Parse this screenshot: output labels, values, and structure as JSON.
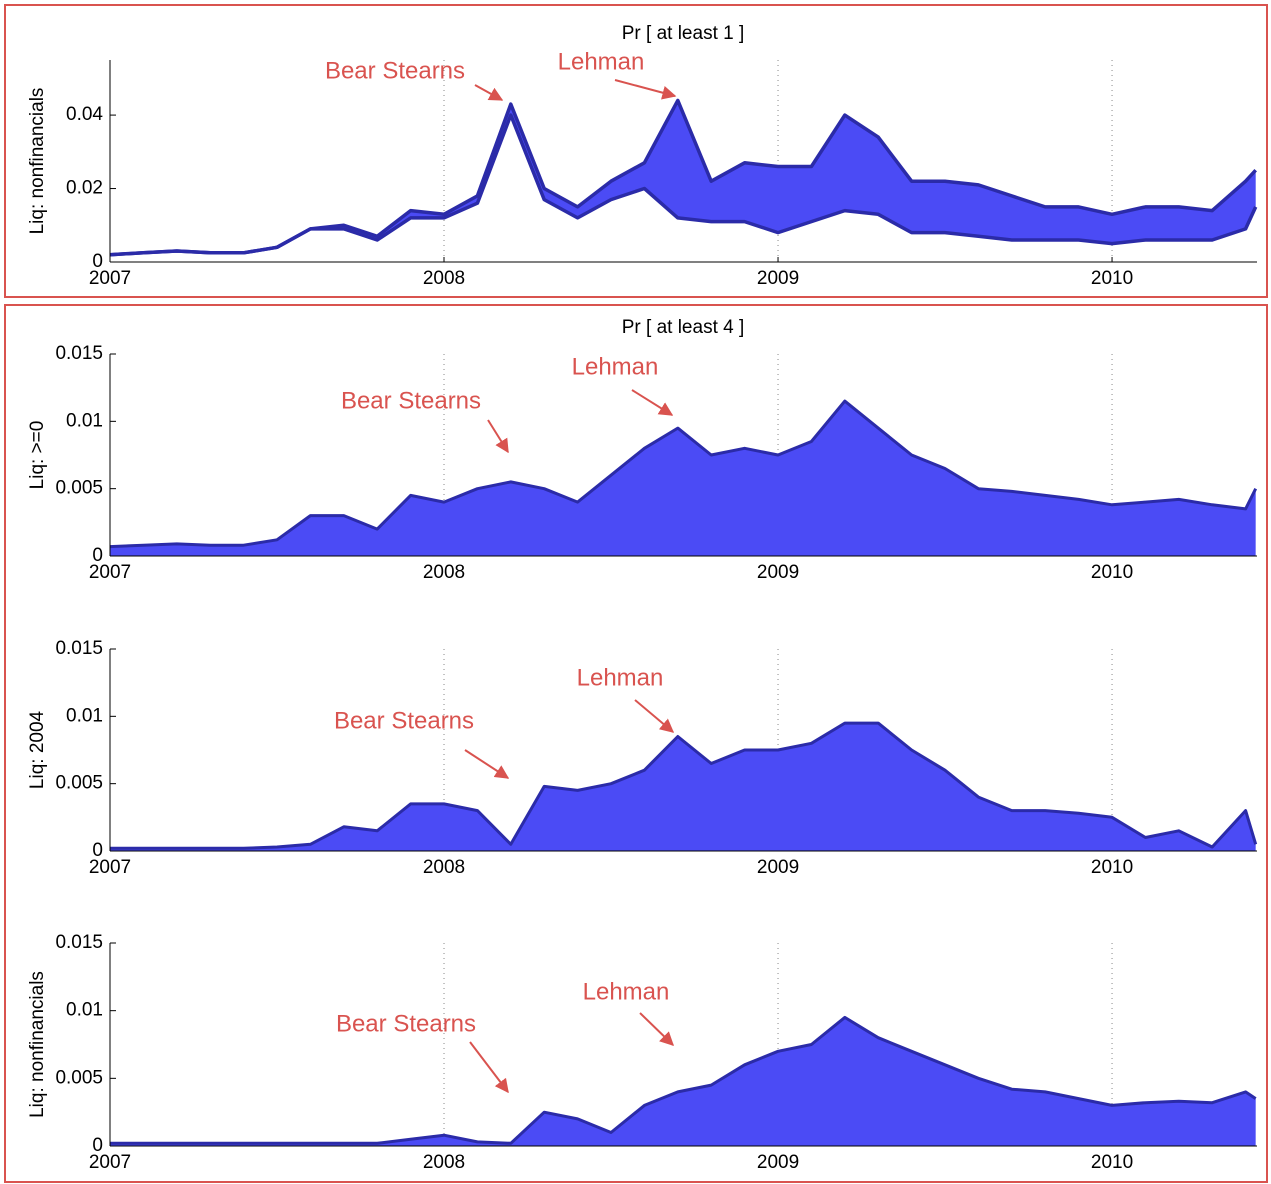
{
  "chart_data": [
    {
      "type": "band",
      "title": "Pr [ at least 1 ]",
      "y_label": "Liq: nonfinancials",
      "annotations": [
        "Bear Stearns",
        "Lehman"
      ],
      "x": [
        2007,
        2007.1,
        2007.2,
        2007.3,
        2007.4,
        2007.5,
        2007.6,
        2007.7,
        2007.8,
        2007.9,
        2008,
        2008.1,
        2008.2,
        2008.3,
        2008.4,
        2008.5,
        2008.6,
        2008.7,
        2008.8,
        2008.9,
        2009,
        2009.1,
        2009.2,
        2009.3,
        2009.4,
        2009.5,
        2009.6,
        2009.7,
        2009.8,
        2009.9,
        2010,
        2010.1,
        2010.2,
        2010.3,
        2010.4,
        2010.43
      ],
      "series": [
        {
          "color": "#4b4bf5",
          "values": [
            0.002,
            0.0025,
            0.003,
            0.0025,
            0.0025,
            0.004,
            0.009,
            0.01,
            0.007,
            0.014,
            0.013,
            0.018,
            0.043,
            0.02,
            0.015,
            0.022,
            0.027,
            0.044,
            0.022,
            0.027,
            0.026,
            0.026,
            0.04,
            0.034,
            0.022,
            0.022,
            0.021,
            0.018,
            0.015,
            0.015,
            0.013,
            0.015,
            0.015,
            0.014,
            0.022,
            0.025
          ]
        },
        {
          "color": "#4b4bf5",
          "values": [
            0.002,
            0.0025,
            0.003,
            0.0025,
            0.0025,
            0.004,
            0.009,
            0.009,
            0.006,
            0.012,
            0.012,
            0.016,
            0.04,
            0.017,
            0.012,
            0.017,
            0.02,
            0.012,
            0.011,
            0.011,
            0.008,
            0.011,
            0.014,
            0.013,
            0.008,
            0.008,
            0.007,
            0.006,
            0.006,
            0.006,
            0.005,
            0.006,
            0.006,
            0.006,
            0.009,
            0.015
          ]
        }
      ],
      "edge_color": "#2b2ba8",
      "xlim": [
        2007,
        2010.434
      ],
      "xticks": [
        2007,
        2008,
        2009,
        2010
      ],
      "ylim": [
        0,
        0.055
      ],
      "yticks": [
        0,
        0.02,
        0.04
      ],
      "xgrid": true
    },
    {
      "type": "area",
      "title": "Pr [ at least 4 ]",
      "y_label": "Liq: >=0",
      "annotations": [
        "Bear Stearns",
        "Lehman"
      ],
      "x": [
        2007,
        2007.1,
        2007.2,
        2007.3,
        2007.4,
        2007.5,
        2007.6,
        2007.7,
        2007.8,
        2007.9,
        2008,
        2008.1,
        2008.2,
        2008.3,
        2008.4,
        2008.5,
        2008.6,
        2008.7,
        2008.8,
        2008.9,
        2009,
        2009.1,
        2009.2,
        2009.3,
        2009.4,
        2009.5,
        2009.6,
        2009.7,
        2009.8,
        2009.9,
        2010,
        2010.1,
        2010.2,
        2010.3,
        2010.4,
        2010.43
      ],
      "values": [
        0.0007,
        0.0008,
        0.0009,
        0.0008,
        0.0008,
        0.0012,
        0.003,
        0.003,
        0.002,
        0.0045,
        0.004,
        0.005,
        0.0055,
        0.005,
        0.004,
        0.006,
        0.008,
        0.0095,
        0.0075,
        0.008,
        0.0075,
        0.0085,
        0.0115,
        0.0095,
        0.0075,
        0.0065,
        0.005,
        0.0048,
        0.0045,
        0.0042,
        0.0038,
        0.004,
        0.0042,
        0.0038,
        0.0035,
        0.005
      ],
      "color": "#4b4bf5",
      "edge_color": "#2b2ba8",
      "xlim": [
        2007,
        2010.434
      ],
      "xticks": [
        2007,
        2008,
        2009,
        2010
      ],
      "ylim": [
        0,
        0.015
      ],
      "yticks": [
        0,
        0.005,
        0.01,
        0.015
      ],
      "xgrid": true
    },
    {
      "type": "area",
      "y_label": "Liq: 2004",
      "annotations": [
        "Bear Stearns",
        "Lehman"
      ],
      "x": [
        2007,
        2007.1,
        2007.2,
        2007.3,
        2007.4,
        2007.5,
        2007.6,
        2007.7,
        2007.8,
        2007.9,
        2008,
        2008.1,
        2008.2,
        2008.3,
        2008.4,
        2008.5,
        2008.6,
        2008.7,
        2008.8,
        2008.9,
        2009,
        2009.1,
        2009.2,
        2009.3,
        2009.4,
        2009.5,
        2009.6,
        2009.7,
        2009.8,
        2009.9,
        2010,
        2010.1,
        2010.2,
        2010.3,
        2010.4,
        2010.43
      ],
      "values": [
        0.0002,
        0.0002,
        0.0002,
        0.0002,
        0.0002,
        0.0003,
        0.0005,
        0.0018,
        0.0015,
        0.0035,
        0.0035,
        0.003,
        0.0005,
        0.0048,
        0.0045,
        0.005,
        0.006,
        0.0085,
        0.0065,
        0.0075,
        0.0075,
        0.008,
        0.0095,
        0.0095,
        0.0075,
        0.006,
        0.004,
        0.003,
        0.003,
        0.0028,
        0.0025,
        0.001,
        0.0015,
        0.0003,
        0.003,
        0.0005
      ],
      "color": "#4b4bf5",
      "edge_color": "#2b2ba8",
      "xlim": [
        2007,
        2010.434
      ],
      "xticks": [
        2007,
        2008,
        2009,
        2010
      ],
      "ylim": [
        0,
        0.015
      ],
      "yticks": [
        0,
        0.005,
        0.01,
        0.015
      ],
      "xgrid": true
    },
    {
      "type": "area",
      "y_label": "Liq: nonfinancials",
      "annotations": [
        "Bear Stearns",
        "Lehman"
      ],
      "x": [
        2007,
        2007.1,
        2007.2,
        2007.3,
        2007.4,
        2007.5,
        2007.6,
        2007.7,
        2007.8,
        2007.9,
        2008,
        2008.1,
        2008.2,
        2008.3,
        2008.4,
        2008.5,
        2008.6,
        2008.7,
        2008.8,
        2008.9,
        2009,
        2009.1,
        2009.2,
        2009.3,
        2009.4,
        2009.5,
        2009.6,
        2009.7,
        2009.8,
        2009.9,
        2010,
        2010.1,
        2010.2,
        2010.3,
        2010.4,
        2010.43
      ],
      "values": [
        0.0002,
        0.0002,
        0.0002,
        0.0002,
        0.0002,
        0.0002,
        0.0002,
        0.0002,
        0.0002,
        0.0005,
        0.0008,
        0.0003,
        0.0002,
        0.0025,
        0.002,
        0.001,
        0.003,
        0.004,
        0.0045,
        0.006,
        0.007,
        0.0075,
        0.0095,
        0.008,
        0.007,
        0.006,
        0.005,
        0.0042,
        0.004,
        0.0035,
        0.003,
        0.0032,
        0.0033,
        0.0032,
        0.004,
        0.0035
      ],
      "color": "#4b4bf5",
      "edge_color": "#2b2ba8",
      "xlim": [
        2007,
        2010.434
      ],
      "xticks": [
        2007,
        2008,
        2009,
        2010
      ],
      "ylim": [
        0,
        0.015
      ],
      "yticks": [
        0,
        0.005,
        0.01,
        0.015
      ],
      "xgrid": true
    }
  ]
}
